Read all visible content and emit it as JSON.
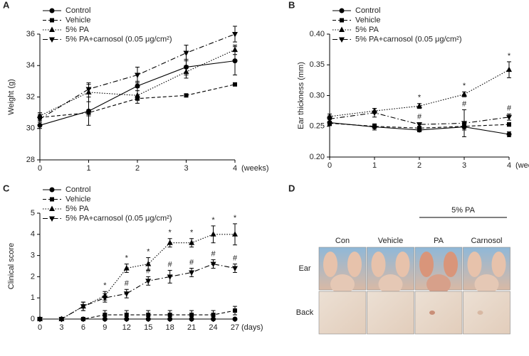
{
  "chart_data": [
    {
      "type": "line",
      "panel": "A",
      "ylabel": "Weight (g)",
      "xlabel": "(weeks)",
      "x": [
        0,
        1,
        2,
        3,
        4
      ],
      "xlim": [
        0,
        4
      ],
      "xticks": [
        0,
        1,
        2,
        3,
        4
      ],
      "ylim": [
        28,
        36
      ],
      "yticks": [
        28,
        30,
        32,
        34,
        36
      ],
      "series": [
        {
          "name": "Control",
          "color": "#000000",
          "marker": "circle",
          "dash": "solid",
          "values": [
            30.2,
            31.1,
            32.7,
            33.9,
            34.3
          ],
          "errors": [
            0.2,
            0.9,
            0.3,
            0.5,
            0.9
          ]
        },
        {
          "name": "Vehicle",
          "color": "#000000",
          "marker": "square",
          "dash": "dashed",
          "values": [
            30.7,
            31.0,
            31.9,
            32.1,
            32.8
          ],
          "errors": [
            0.2,
            0.2,
            0.1,
            0.1,
            0.1
          ]
        },
        {
          "name": "5% PA",
          "color": "#000000",
          "marker": "triangle-up",
          "dash": "dotted",
          "values": [
            30.8,
            32.3,
            32.1,
            33.6,
            35.0
          ],
          "errors": [
            0.2,
            0.6,
            0.5,
            0.4,
            0.3
          ]
        },
        {
          "name": "5% PA+carnosol (0.05 μg/cm²)",
          "color": "#000000",
          "marker": "triangle-down",
          "dash": "dashdot",
          "values": [
            30.6,
            32.5,
            33.4,
            34.8,
            36.0
          ],
          "errors": [
            0.2,
            0.3,
            0.5,
            0.5,
            0.5
          ]
        }
      ]
    },
    {
      "type": "line",
      "panel": "B",
      "ylabel": "Ear thickness (mm)",
      "xlabel": "(weeks)",
      "x": [
        0,
        1,
        2,
        3,
        4
      ],
      "xlim": [
        0,
        4
      ],
      "xticks": [
        0,
        1,
        2,
        3,
        4
      ],
      "ylim": [
        0.2,
        0.4
      ],
      "yticks": [
        {
          "value": 0.2,
          "label": "0.20"
        },
        0.25,
        {
          "value": 0.3,
          "label": "0.30"
        },
        0.35,
        {
          "value": 0.4,
          "label": "0.40"
        }
      ],
      "series": [
        {
          "name": "Control",
          "color": "#000000",
          "marker": "circle",
          "dash": "solid",
          "values": [
            0.256,
            0.249,
            0.244,
            0.249,
            0.237
          ],
          "errors": [
            0.005,
            0.005,
            0.003,
            0.005,
            0.004
          ]
        },
        {
          "name": "Vehicle",
          "color": "#000000",
          "marker": "square",
          "dash": "dashed",
          "values": [
            0.255,
            0.25,
            0.247,
            0.25,
            0.253
          ],
          "errors": [
            0.003,
            0.003,
            0.002,
            0.003,
            0.003
          ]
        },
        {
          "name": "5% PA",
          "color": "#000000",
          "marker": "triangle-up",
          "dash": "dotted",
          "values": [
            0.266,
            0.275,
            0.283,
            0.302,
            0.342
          ],
          "errors": [
            0.004,
            0.004,
            0.004,
            0.004,
            0.013
          ],
          "marks": [
            null,
            null,
            "*",
            "*",
            "*"
          ]
        },
        {
          "name": "5% PA+carnosol (0.05 μg/cm²)",
          "color": "#000000",
          "marker": "triangle-down",
          "dash": "dashdot",
          "values": [
            0.262,
            0.272,
            0.253,
            0.255,
            0.265
          ],
          "errors": [
            0.005,
            0.007,
            0.003,
            0.022,
            0.005
          ],
          "marks": [
            null,
            null,
            "#",
            "#",
            "#"
          ]
        }
      ]
    },
    {
      "type": "line",
      "panel": "C",
      "ylabel": "Clinical score",
      "xlabel": "(days)",
      "x": [
        0,
        3,
        6,
        9,
        12,
        15,
        18,
        21,
        24,
        27
      ],
      "xlim": [
        0,
        27
      ],
      "xticks": [
        0,
        3,
        6,
        9,
        12,
        15,
        18,
        21,
        24,
        27
      ],
      "ylim": [
        0,
        5
      ],
      "yticks": [
        0,
        1,
        2,
        3,
        4,
        5
      ],
      "series": [
        {
          "name": "Control",
          "color": "#000000",
          "marker": "circle",
          "dash": "solid",
          "values": [
            0,
            0,
            0,
            0,
            0,
            0,
            0,
            0,
            0,
            0
          ],
          "errors": [
            0,
            0,
            0,
            0,
            0,
            0,
            0,
            0,
            0,
            0
          ]
        },
        {
          "name": "Vehicle",
          "color": "#000000",
          "marker": "square",
          "dash": "dashed",
          "values": [
            0,
            0,
            0,
            0.2,
            0.2,
            0.2,
            0.2,
            0.2,
            0.2,
            0.4
          ],
          "errors": [
            0,
            0,
            0,
            0.2,
            0.2,
            0.2,
            0.2,
            0.2,
            0.2,
            0.2
          ]
        },
        {
          "name": "5% PA",
          "color": "#000000",
          "marker": "triangle-up",
          "dash": "dotted",
          "values": [
            0,
            0,
            0.6,
            1.1,
            2.4,
            2.6,
            3.6,
            3.6,
            4.0,
            4.0
          ],
          "errors": [
            0,
            0,
            0.2,
            0.2,
            0.2,
            0.3,
            0.2,
            0.2,
            0.4,
            0.5
          ],
          "marks": [
            null,
            null,
            null,
            "*",
            "*",
            "*",
            "*",
            "*",
            "*",
            "*"
          ]
        },
        {
          "name": "5% PA+carnosol (0.05 μg/cm²)",
          "color": "#000000",
          "marker": "triangle-down",
          "dash": "dashdot",
          "values": [
            0,
            0,
            0.6,
            1.0,
            1.2,
            1.8,
            2.0,
            2.2,
            2.6,
            2.4
          ],
          "errors": [
            0,
            0,
            0.2,
            0.2,
            0.2,
            0.2,
            0.3,
            0.2,
            0.2,
            0.2
          ],
          "marks": [
            null,
            null,
            null,
            null,
            "#",
            "#",
            "#",
            "#",
            "#",
            "#"
          ]
        }
      ]
    }
  ],
  "panel_d": {
    "label": "D",
    "group": "5% PA",
    "columns": [
      "Con",
      "Vehicle",
      "PA",
      "Carnosol"
    ],
    "rows": [
      "Ear",
      "Back"
    ]
  }
}
